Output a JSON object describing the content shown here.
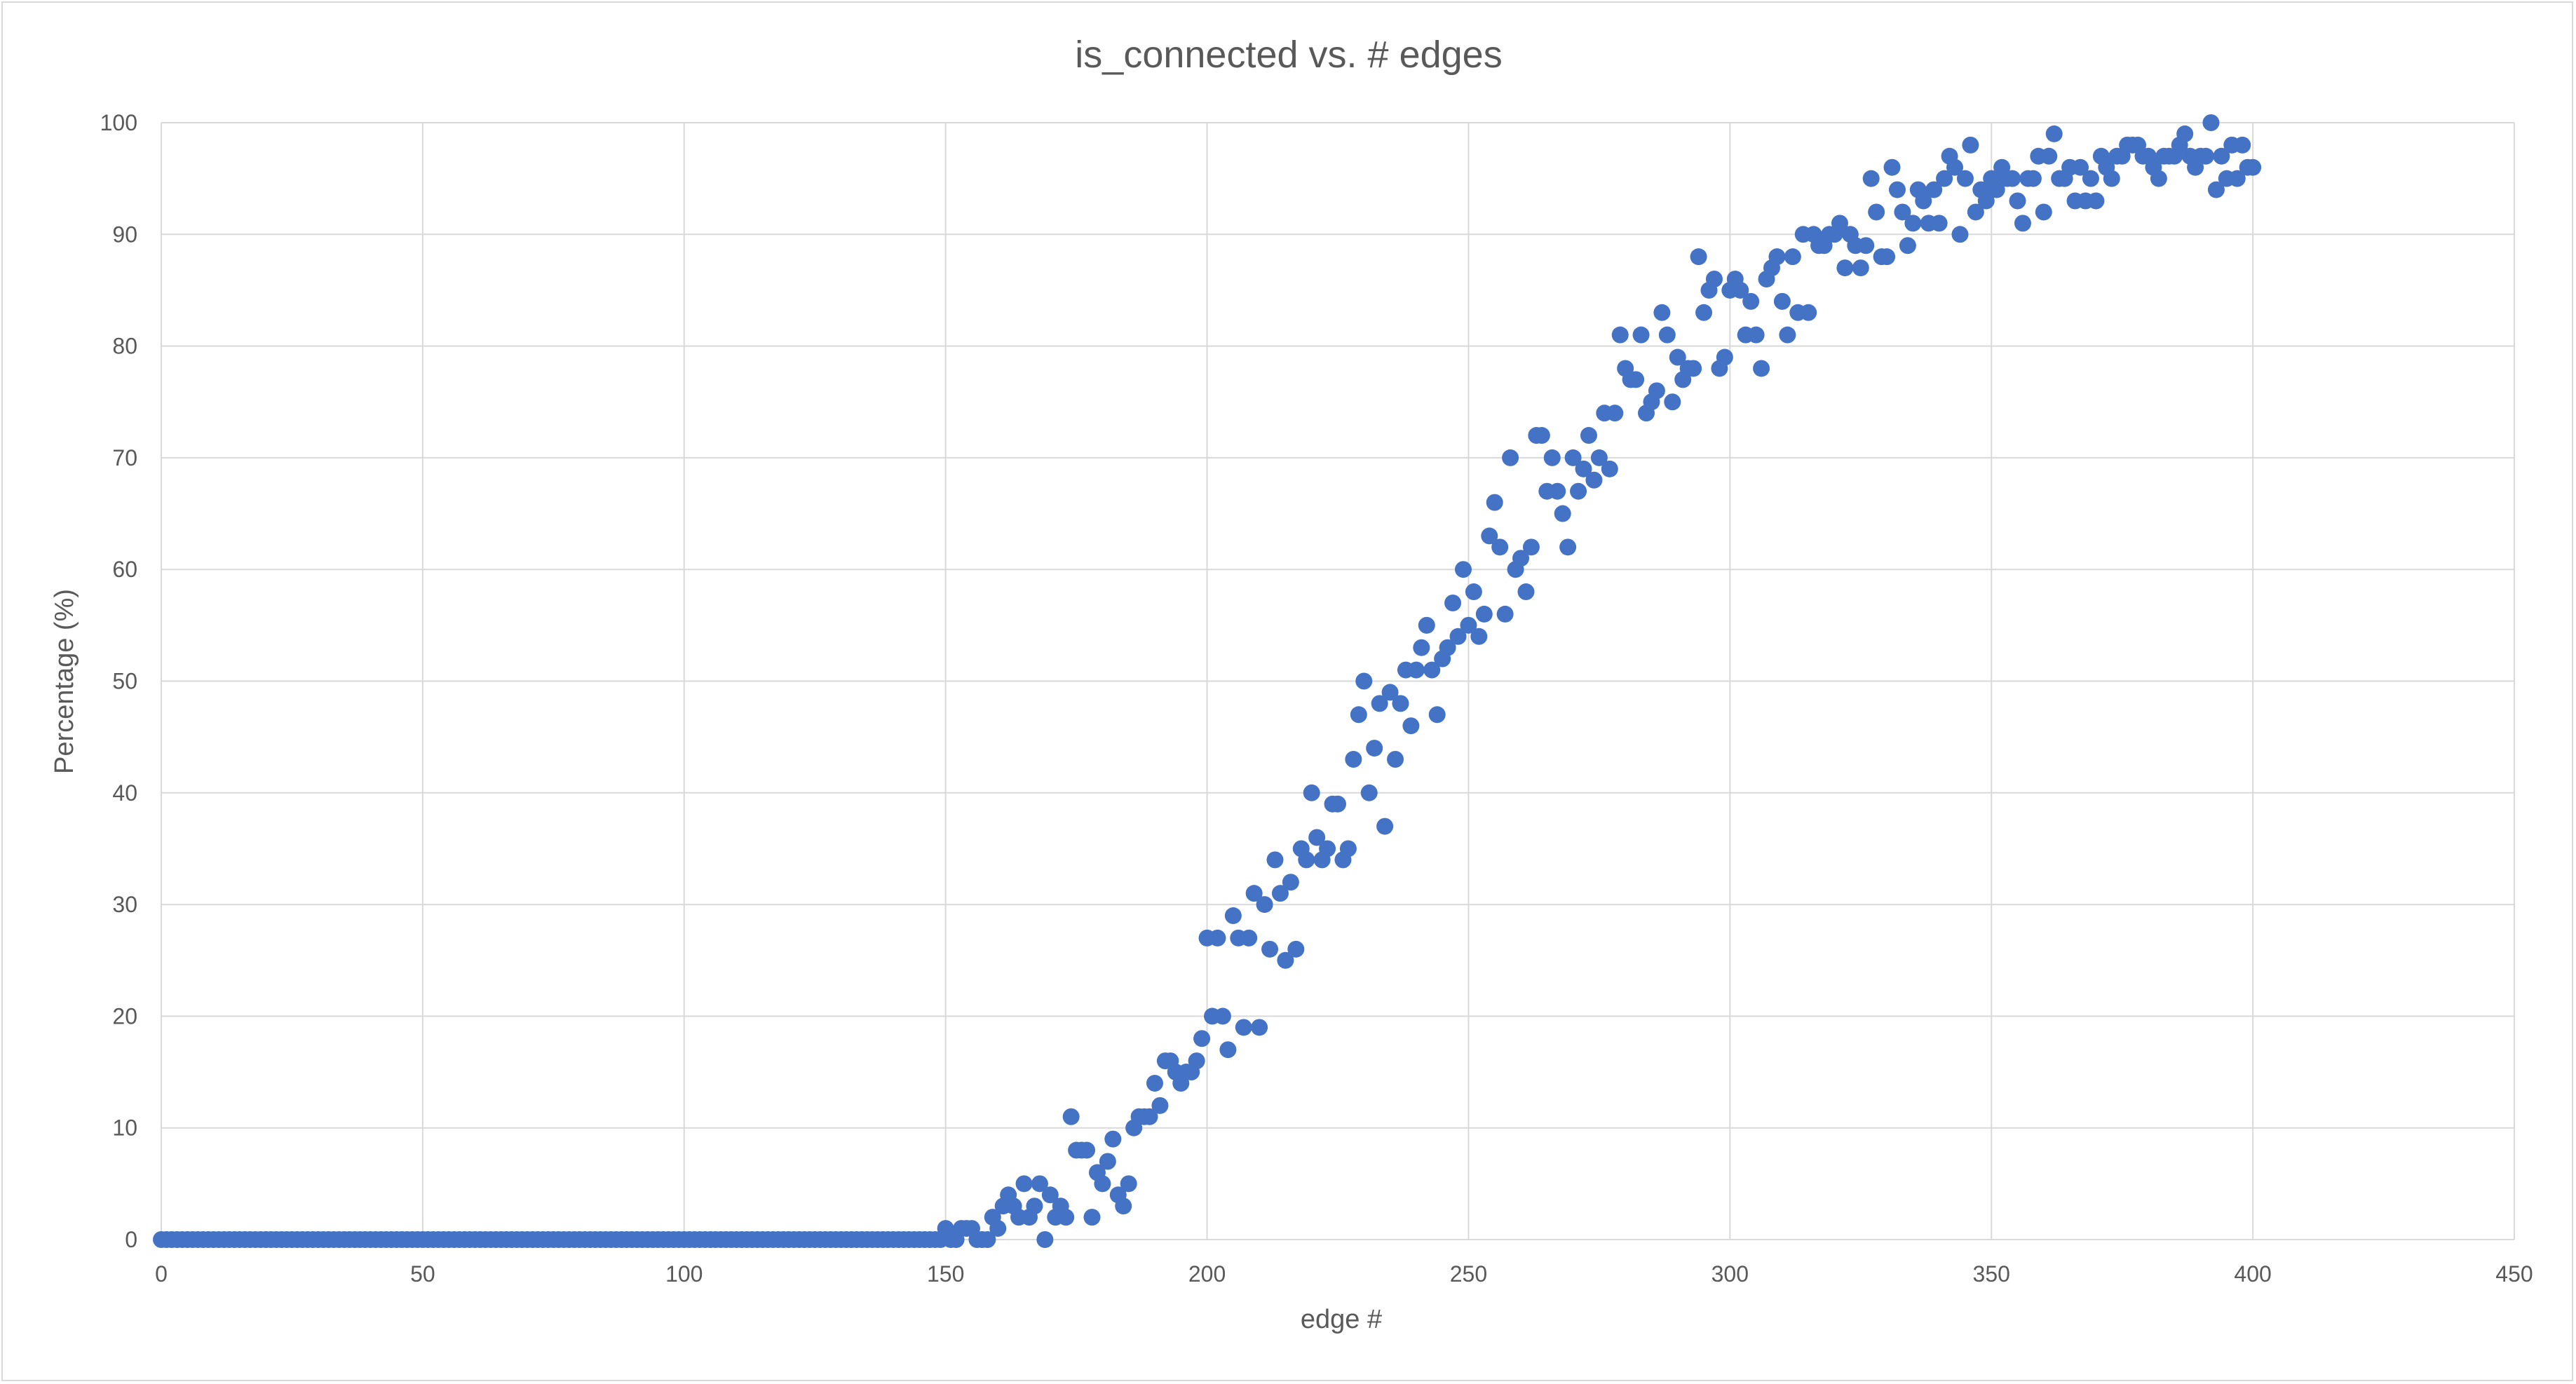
{
  "chart_data": {
    "type": "scatter",
    "title": "is_connected vs. # edges",
    "xlabel": "edge #",
    "ylabel": "Percentage (%)",
    "xlim": [
      0,
      450
    ],
    "ylim": [
      0,
      100
    ],
    "xticks": [
      0,
      50,
      100,
      150,
      200,
      250,
      300,
      350,
      400,
      450
    ],
    "yticks": [
      0,
      10,
      20,
      30,
      40,
      50,
      60,
      70,
      80,
      90,
      100
    ],
    "grid": true,
    "legend": "none",
    "marker_color": "#4472c4",
    "gridline_color": "#d9d9d9",
    "text_color": "#595959",
    "series": [
      {
        "x": [
          0,
          1,
          2,
          3,
          4,
          5,
          6,
          7,
          8,
          9,
          10,
          11,
          12,
          13,
          14,
          15,
          16,
          17,
          18,
          19,
          20,
          21,
          22,
          23,
          24,
          25,
          26,
          27,
          28,
          29,
          30,
          31,
          32,
          33,
          34,
          35,
          36,
          37,
          38,
          39,
          40,
          41,
          42,
          43,
          44,
          45,
          46,
          47,
          48,
          49,
          50,
          51,
          52,
          53,
          54,
          55,
          56,
          57,
          58,
          59,
          60,
          61,
          62,
          63,
          64,
          65,
          66,
          67,
          68,
          69,
          70,
          71,
          72,
          73,
          74,
          75,
          76,
          77,
          78,
          79,
          80,
          81,
          82,
          83,
          84,
          85,
          86,
          87,
          88,
          89,
          90,
          91,
          92,
          93,
          94,
          95,
          96,
          97,
          98,
          99,
          100,
          101,
          102,
          103,
          104,
          105,
          106,
          107,
          108,
          109,
          110,
          111,
          112,
          113,
          114,
          115,
          116,
          117,
          118,
          119,
          120,
          121,
          122,
          123,
          124,
          125,
          126,
          127,
          128,
          129,
          130,
          131,
          132,
          133,
          134,
          135,
          136,
          137,
          138,
          139,
          140,
          141,
          142,
          143,
          144,
          145,
          146,
          147,
          148,
          149,
          150,
          151,
          152,
          153,
          154,
          155,
          156,
          157,
          158,
          159,
          160,
          161,
          162,
          163,
          164,
          165,
          166,
          167,
          168,
          169,
          170,
          171,
          172,
          173,
          174,
          175,
          176,
          177,
          178,
          179,
          180,
          181,
          182,
          183,
          184,
          185,
          186,
          187,
          188,
          189,
          190,
          191,
          192,
          193,
          194,
          195,
          196,
          197,
          198,
          199,
          200,
          201,
          202,
          203,
          204,
          205,
          206,
          207,
          208,
          209,
          210,
          211,
          212,
          213,
          214,
          215,
          216,
          217,
          218,
          219,
          220,
          221,
          222,
          223,
          224,
          225,
          226,
          227,
          228,
          229,
          230,
          231,
          232,
          233,
          234,
          235,
          236,
          237,
          238,
          239,
          240,
          241,
          242,
          243,
          244,
          245,
          246,
          247,
          248,
          249,
          250,
          251,
          252,
          253,
          254,
          255,
          256,
          257,
          258,
          259,
          260,
          261,
          262,
          263,
          264,
          265,
          266,
          267,
          268,
          269,
          270,
          271,
          272,
          273,
          274,
          275,
          276,
          277,
          278,
          279,
          280,
          281,
          282,
          283,
          284,
          285,
          286,
          287,
          288,
          289,
          290,
          291,
          292,
          293,
          294,
          295,
          296,
          297,
          298,
          299,
          300,
          301,
          302,
          303,
          304,
          305,
          306,
          307,
          308,
          309,
          310,
          311,
          312,
          313,
          314,
          315,
          316,
          317,
          318,
          319,
          320,
          321,
          322,
          323,
          324,
          325,
          326,
          327,
          328,
          329,
          330,
          331,
          332,
          333,
          334,
          335,
          336,
          337,
          338,
          339,
          340,
          341,
          342,
          343,
          344,
          345,
          346,
          347,
          348,
          349,
          350,
          351,
          352,
          353,
          354,
          355,
          356,
          357,
          358,
          359,
          360,
          361,
          362,
          363,
          364,
          365,
          366,
          367,
          368,
          369,
          370,
          371,
          372,
          373,
          374,
          375,
          376,
          377,
          378,
          379,
          380,
          381,
          382,
          383,
          384,
          385,
          386,
          387,
          388,
          389,
          390,
          391,
          392,
          393,
          394,
          395,
          396,
          397,
          398,
          399,
          400
        ],
        "y": [
          0,
          0,
          0,
          0,
          0,
          0,
          0,
          0,
          0,
          0,
          0,
          0,
          0,
          0,
          0,
          0,
          0,
          0,
          0,
          0,
          0,
          0,
          0,
          0,
          0,
          0,
          0,
          0,
          0,
          0,
          0,
          0,
          0,
          0,
          0,
          0,
          0,
          0,
          0,
          0,
          0,
          0,
          0,
          0,
          0,
          0,
          0,
          0,
          0,
          0,
          0,
          0,
          0,
          0,
          0,
          0,
          0,
          0,
          0,
          0,
          0,
          0,
          0,
          0,
          0,
          0,
          0,
          0,
          0,
          0,
          0,
          0,
          0,
          0,
          0,
          0,
          0,
          0,
          0,
          0,
          0,
          0,
          0,
          0,
          0,
          0,
          0,
          0,
          0,
          0,
          0,
          0,
          0,
          0,
          0,
          0,
          0,
          0,
          0,
          0,
          0,
          0,
          0,
          0,
          0,
          0,
          0,
          0,
          0,
          0,
          0,
          0,
          0,
          0,
          0,
          0,
          0,
          0,
          0,
          0,
          0,
          0,
          0,
          0,
          0,
          0,
          0,
          0,
          0,
          0,
          0,
          0,
          0,
          0,
          0,
          0,
          0,
          0,
          0,
          0,
          0,
          0,
          0,
          0,
          0,
          0,
          0,
          0,
          0,
          0,
          1,
          0,
          0,
          1,
          1,
          1,
          0,
          0,
          0,
          2,
          1,
          3,
          4,
          3,
          2,
          5,
          2,
          3,
          5,
          0,
          4,
          2,
          3,
          2,
          11,
          8,
          8,
          8,
          2,
          6,
          5,
          7,
          9,
          4,
          3,
          5,
          10,
          11,
          11,
          11,
          14,
          12,
          16,
          16,
          15,
          14,
          15,
          15,
          16,
          18,
          27,
          20,
          27,
          20,
          17,
          29,
          27,
          19,
          27,
          31,
          19,
          30,
          26,
          34,
          31,
          25,
          32,
          26,
          35,
          34,
          40,
          36,
          34,
          35,
          39,
          39,
          34,
          35,
          43,
          47,
          50,
          40,
          44,
          48,
          37,
          49,
          43,
          48,
          51,
          46,
          51,
          53,
          55,
          51,
          47,
          52,
          53,
          57,
          54,
          60,
          55,
          58,
          54,
          56,
          63,
          66,
          62,
          56,
          70,
          60,
          61,
          58,
          62,
          72,
          72,
          67,
          70,
          67,
          65,
          62,
          70,
          67,
          69,
          72,
          68,
          70,
          74,
          69,
          74,
          81,
          78,
          77,
          77,
          81,
          74,
          75,
          76,
          83,
          81,
          75,
          79,
          77,
          78,
          78,
          88,
          83,
          85,
          86,
          78,
          79,
          85,
          86,
          85,
          81,
          84,
          81,
          78,
          86,
          87,
          88,
          84,
          81,
          88,
          83,
          90,
          83,
          90,
          89,
          89,
          90,
          90,
          91,
          87,
          90,
          89,
          87,
          89,
          95,
          92,
          88,
          88,
          96,
          94,
          92,
          89,
          91,
          94,
          93,
          91,
          94,
          91,
          95,
          97,
          96,
          90,
          95,
          98,
          92,
          94,
          93,
          95,
          94,
          96,
          95,
          95,
          93,
          91,
          95,
          95,
          97,
          92,
          97,
          99,
          95,
          95,
          96,
          93,
          96,
          93,
          95,
          93,
          97,
          96,
          95,
          97,
          97,
          98,
          98,
          98,
          97,
          97,
          96,
          95,
          97,
          97,
          97,
          98,
          99,
          97,
          96,
          97,
          97,
          100,
          94,
          97,
          95,
          98,
          95,
          98,
          96,
          96
        ]
      }
    ]
  }
}
